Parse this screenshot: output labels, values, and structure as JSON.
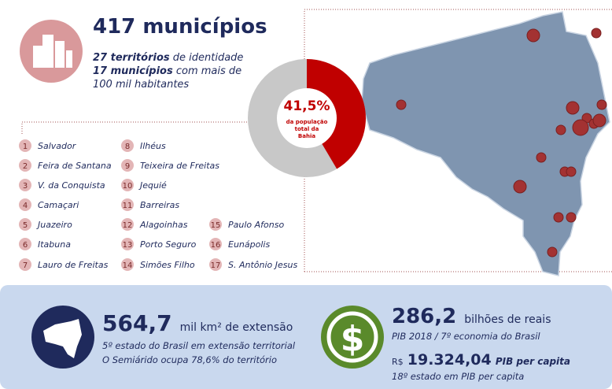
{
  "header": {
    "count": "417",
    "title": "municípios",
    "line1_bold": "27 territórios",
    "line1": "de identidade",
    "line2_bold": "17 municípios",
    "line2": "com mais de",
    "line3": "100 mil habitantes"
  },
  "donut": {
    "value": 41.5,
    "label": "41,5%",
    "caption": [
      "da população",
      "total da",
      "Bahia"
    ]
  },
  "list": [
    {
      "rank": 1,
      "name": "Salvador"
    },
    {
      "rank": 2,
      "name": "Feira  de Santana"
    },
    {
      "rank": 3,
      "name": "V. da Conquista"
    },
    {
      "rank": 4,
      "name": "Camaçari"
    },
    {
      "rank": 5,
      "name": "Juazeiro"
    },
    {
      "rank": 6,
      "name": "Itabuna"
    },
    {
      "rank": 7,
      "name": "Lauro de Freitas"
    },
    {
      "rank": 8,
      "name": "Ilhéus"
    },
    {
      "rank": 9,
      "name": "Teixeira  de Freitas"
    },
    {
      "rank": 10,
      "name": "Jequié"
    },
    {
      "rank": 11,
      "name": "Barreiras"
    },
    {
      "rank": 12,
      "name": "Alagoinhas"
    },
    {
      "rank": 13,
      "name": "Porto Seguro"
    },
    {
      "rank": 14,
      "name": "Simões Filho"
    },
    {
      "rank": 15,
      "name": "Paulo Afonso"
    },
    {
      "rank": 16,
      "name": "Eunápolis"
    },
    {
      "rank": 17,
      "name": "S. Antônio Jesus"
    }
  ],
  "area": {
    "value": "564,7",
    "unit": "mil km² de extensão",
    "line1": "5º estado do Brasil em extensão territorial",
    "line2": "O Semiárido ocupa 78,6% do território"
  },
  "gdp": {
    "value": "286,2",
    "unit": "bilhões de reais",
    "line1": "PIB 2018 / 7º economia do Brasil",
    "currency": "R$",
    "per_capita": "19.324,04",
    "per_capita_label": "PIB per capita",
    "line2": "18º estado em PIB per capita"
  }
}
